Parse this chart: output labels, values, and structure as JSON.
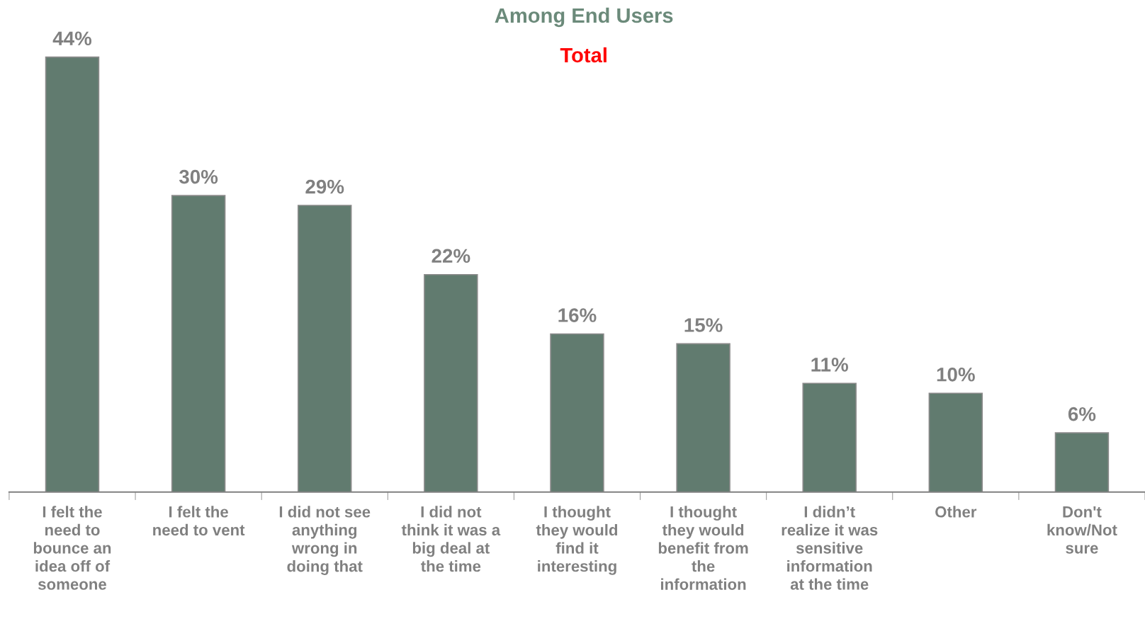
{
  "chart_data": {
    "type": "bar",
    "title": "Among End Users",
    "subtitle": "Total",
    "categories": [
      "I felt the\nneed to\nbounce an\nidea off of\nsomeone",
      "I felt the\nneed to vent",
      "I did not see\nanything\nwrong in\ndoing that",
      "I did not\nthink it was a\nbig deal at\nthe time",
      "I thought\nthey would\nfind it\ninteresting",
      "I thought\nthey would\nbenefit from\nthe\ninformation",
      "I didn’t\nrealize it was\nsensitive\ninformation\nat the time",
      "Other",
      "Don't\nknow/Not\nsure"
    ],
    "values": [
      44,
      30,
      29,
      22,
      16,
      15,
      11,
      10,
      6
    ],
    "value_labels": [
      "44%",
      "30%",
      "29%",
      "22%",
      "16%",
      "15%",
      "11%",
      "10%",
      "6%"
    ],
    "color": "#617b6f",
    "grid": false,
    "legend": false
  }
}
